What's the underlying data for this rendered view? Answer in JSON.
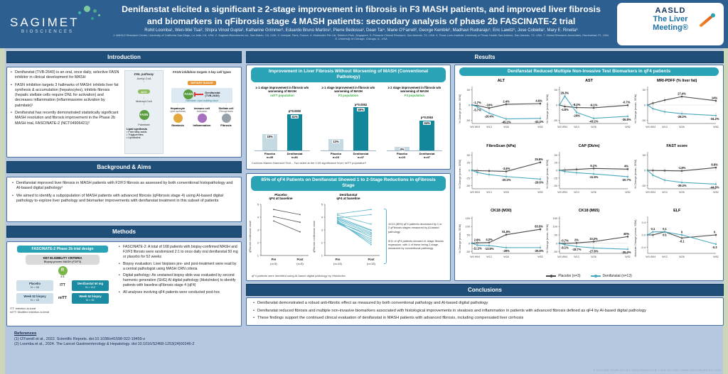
{
  "header": {
    "logo": {
      "name": "SAGIMET",
      "sub": "BIOSCIENCES"
    },
    "title_line1": "Denifanstat elicited a significant ≥ 2-stage improvement in fibrosis in F3 MASH patients, and improved liver fibrosis",
    "title_line2": "and biomarkers in qFibrosis stage 4 MASH patients: secondary analysis of phase 2b FASCINATE-2 trial",
    "authors": "Rohit Loomba¹, Wen-Wei Tsai², Shipra Vinod Gupta², Katharine Grimmer², Eduardo Bruno Martins², Pierre Bedossa³, Dean Tai⁴, Marie O'Farrell², George Kemble², Madhavi Rudraraju⁵, Eric Lawitz⁶, Jose Cobiella⁷, Mary E. Rinella⁸",
    "affiliations": "1. MASLD Research Center, University of California San Diego, La Jolla, CA, USA. 2. Sagimet Biosciences Inc, San Mateo, CA, USA. 3. Liverpat, Paris, France. 4. HistoIndex Pte Ltd, Teletech Park, Singapore. 5. Pinnacle Clinical Research, San Antonio, TX, USA. 6. Texas Liver Institute, University of Texas Health San Antonio, San Antonio, TX, USA. 7. Global Research Associates, Homestead, FL, USA. 8. University of Chicago, Chicago, IL, USA",
    "aasld": {
      "line1": "AASLD",
      "line2": "The Liver",
      "line3": "Meeting®"
    }
  },
  "intro": {
    "title": "Introduction",
    "bullets": [
      "Denifanstat (TVB-2640) is an oral, once daily, selective FASN inhibitor in clinical development for MASH",
      "FASN inhibition targets 3 hallmarks of MASH: inhibits liver fat synthesis & accumulation (hepatocytes), inhibits fibrosis (hepatic stellate cells require DNL for activation) and decreases inflammation (inflammasome activation by palmitate)¹",
      "Denifanstat has recently demonstrated statistically significant MASH resolution and fibrosis improvement in the Phase 2b MASH trial, FASCINATE-2 (NCT04906421)²"
    ],
    "dnl": {
      "title": "DNL pathway",
      "steps": [
        "Acetyl-CoA",
        "ACC",
        "Malonyl-CoA",
        "FASN",
        "Palmitate"
      ],
      "lipid_title": "Lipid synthesis",
      "lipid_items": [
        "• Free fatty acids",
        "• Triglycerides",
        "• Lipotoxins"
      ]
    },
    "fasn": {
      "title": "FASN inhibition targets 3 key cell types",
      "dietary": "DIETARY SUGAR",
      "fasn_label": "FASN",
      "drug_line1": "Denifanstat",
      "drug_line2": "(TVB-2640)",
      "palmitate": "Palmitate: Lipid building block",
      "cells": [
        {
          "name": "Hepatocyte",
          "func": "Lipid synthesis",
          "outcome": "Steatosis",
          "color": "#e3a93e"
        },
        {
          "name": "Immune cell",
          "func": "Activation",
          "outcome": "Inflammation",
          "color": "#a66fc0"
        },
        {
          "name": "Stellate cell",
          "func": "Fibrogenesis",
          "outcome": "Fibrosis",
          "color": "#98a0a8"
        }
      ]
    }
  },
  "background": {
    "title": "Background & Aims",
    "bullets": [
      "Denifanstat improved liver fibrosis in MASH patients with F2/F3 fibrosis as assessed by both conventional histopathology and AI-based digital pathology²",
      "We aimed to identify a subpopulation of MASH patients with advanced fibrosis (qFibrosis stage 4) using AI-based digital pathology to explore liver pathology and biomarker improvements with denifanstat treatment in this subset of patients"
    ]
  },
  "methods": {
    "title": "Methods",
    "trial": {
      "header": "FASCINATE-2 Phase 2b trial design",
      "eligibility_title": "KEY ELIGIBILITY CRITERIA",
      "eligibility_sub": "Biopsy-proven MASH (F2/F3)",
      "randomization_letter": "R",
      "ratio": "2:1",
      "itt_label": "ITT",
      "mitt_label": "mITT",
      "arms": [
        {
          "l1": "Placebo",
          "l2": "N = 56"
        },
        {
          "l1": "Denifanstat 50 mg",
          "l2": "N = 112"
        }
      ],
      "biopsies": [
        {
          "l1": "Week 52 biopsy",
          "l2": "N = 45"
        },
        {
          "l1": "Week 52 biopsy",
          "l2": "N = 81"
        }
      ],
      "footnote1": "ITT: Intention-to-treat",
      "footnote2": "mITT: Modified intention-to-treat"
    },
    "bullets": [
      "FASCINATE-2: A total of 168 patients with biopsy-confirmed MASH and F2/F3 fibrosis were randomized 2:1 to once daily oral denifanstat 50 mg or placebo for 52 weeks",
      "Biopsy evaluation: Liver biopsies pre- and post-treatment were read by a central pathologist using MASH CRN criteria",
      "Digital pathology: An unstained biopsy slide was evaluated by second harmonic generation (SHG) AI digital pathology (HistoIndex) to identify patients with baseline qFibrosis stage 4 (qF4)",
      "All analyses involving qF4 patients were conducted post-hoc"
    ]
  },
  "results": {
    "title": "Results",
    "conventional": {
      "header": "Improvement in Liver Fibrosis Without Worsening of MASH (Conventional Pathology)",
      "charts": [
        {
          "type": "bar",
          "title": "≥ 1 stage improvement in fibrosis w/o worsening of MASH",
          "population": "mITT population",
          "p_value": "p=0.0002",
          "placebo": {
            "label": "Placebo",
            "n": "n=45",
            "value": 18,
            "text": "18%"
          },
          "denifanstat": {
            "label": "Denifanstat",
            "n": "n=81",
            "value": 41,
            "text": "41%"
          }
        },
        {
          "type": "bar",
          "title": "≥ 1 stage improvement in fibrosis w/o worsening of MASH",
          "population": "F3 population",
          "p_value": "p=0.0052",
          "placebo": {
            "label": "Placebo",
            "n": "n=23",
            "value": 13,
            "text": "13%"
          },
          "denifanstat": {
            "label": "Denifanstat",
            "n": "n=47",
            "value": 49,
            "text": "49%"
          }
        },
        {
          "type": "bar",
          "title": "≥ 2 stage improvement in fibrosis w/o worsening of MASH",
          "population": "F3 population",
          "p_value": "p=0.0063",
          "placebo": {
            "label": "Placebo",
            "n": "n=23",
            "value": 4,
            "text": "4%"
          },
          "denifanstat": {
            "label": "Denifanstat",
            "n": "n=47",
            "value": 34,
            "text": "34%"
          }
        }
      ],
      "footnote": "Cochran-Mantel-Haenszel Test – Two sided at the 0.05 significance level; mITT population²"
    },
    "qf4": {
      "header": "85% of qF4 Patients on Denifanstat Showed 1 to 2-Stage Reductions in qFibrosis Stage",
      "ylabel": "qFibrosis continuous value",
      "placebo_plot": {
        "title_line1": "Placebo",
        "title_line2": "qF4 at baseline",
        "x_pre": "Pre",
        "x_pre_n": "(n=3)",
        "x_post": "Post",
        "x_post_n": "(n=3)",
        "lines": [
          [
            4.6,
            4.2
          ],
          [
            4.05,
            3.6
          ],
          [
            3.7,
            2.85
          ]
        ]
      },
      "denifanstat_plot": {
        "title_line1": "Denifanstat",
        "title_line2": "qF4 at baseline",
        "x_pre": "Pre",
        "x_pre_n": "(n=13)",
        "x_post": "Post",
        "x_post_n": "(n=13)",
        "lines": [
          [
            4.25,
            4.6
          ],
          [
            3.95,
            4.2
          ],
          [
            4.15,
            3.45
          ],
          [
            4.0,
            3.0
          ],
          [
            3.9,
            2.95
          ],
          [
            3.85,
            2.8
          ],
          [
            3.75,
            2.7
          ],
          [
            3.6,
            2.6
          ],
          [
            3.65,
            2.45
          ],
          [
            3.5,
            2.3
          ],
          [
            3.55,
            2.15
          ],
          [
            3.6,
            2.0
          ],
          [
            3.7,
            1.85
          ]
        ]
      },
      "annotations": [
        "11/13 (85%) qF4 patients decreased by 1 or 2 qFibrosis stages measured by AI-based pathology",
        "5/11 of qF4 patients showed ≥1 stage fibrosis regression, with 4 of these being 2-stage, measured by conventional pathology"
      ],
      "footnote": "qF4 patients were identified using AI-based digital pathology by HistoIndex"
    },
    "nit": {
      "header": "Denifanstat Reduced Multiple Non-Invasive Test Biomarkers in qF4 patients",
      "x_weeks": [
        0,
        4,
        13,
        26,
        52
      ],
      "x_labels": [
        "W0",
        "W04",
        "W13",
        "W26",
        "W52"
      ],
      "legend": [
        {
          "label": "Placebo (n=3)",
          "color": "#4a4a4a"
        },
        {
          "label": "Denifanstat (n=13)",
          "color": "#4aa9c0"
        }
      ],
      "charts": [
        {
          "id": "alt",
          "type": "line",
          "title": "ALT",
          "ylabel": "% Change (mean, SEM)",
          "ylim": [
            -60,
            60
          ],
          "yticks": [
            50,
            0,
            -50
          ],
          "placebo": {
            "values": [
              0,
              -1.7,
              -10,
              2.4,
              4.6
            ],
            "labels": [
              "",
              "-1.7%",
              "-10%",
              "2.4%",
              "4.6%"
            ]
          },
          "denifanstat": {
            "values": [
              0,
              -5.7,
              -26.4,
              -45.2,
              -43.4
            ],
            "labels": [
              "",
              "-5.7%",
              "-26.4%",
              "-45.2%",
              "-43.4%"
            ]
          }
        },
        {
          "id": "ast",
          "type": "line",
          "title": "AST",
          "ylabel": "% Change (mean, SEM)",
          "ylim": [
            -60,
            60
          ],
          "yticks": [
            50,
            0,
            -50
          ],
          "placebo": {
            "values": [
              0,
              -4.8,
              -8.2,
              -9.1,
              -0.7
            ],
            "labels": [
              "",
              "-4.8%",
              "-8.2%",
              "-9.1%",
              "-0.7%"
            ]
          },
          "denifanstat": {
            "values": [
              0,
              29.3,
              -24,
              -43.2,
              -36.8
            ],
            "labels": [
              "",
              "29.3%",
              "-24%",
              "-43.2%",
              "-36.8%"
            ]
          }
        },
        {
          "id": "mri-pdff",
          "type": "line",
          "title": "MRI-PDFF (% liver fat)",
          "ylabel": "% Change (mean, SEM)",
          "ylim": [
            -60,
            60
          ],
          "yticks": [
            50,
            0,
            -50
          ],
          "placebo": {
            "values": [
              0,
              6,
              16,
              27.4,
              14
            ],
            "labels": [
              "",
              "",
              "",
              "27.4%",
              "14%"
            ]
          },
          "denifanstat": {
            "values": [
              0,
              -12,
              -22,
              -28.2,
              -34.2
            ],
            "labels": [
              "",
              "",
              "",
              "-28.2%",
              "-34.2%"
            ]
          }
        },
        {
          "id": "fibroscan",
          "type": "line",
          "title": "FibroScan (kPa)",
          "ylabel": "% Change (mean, SEM)",
          "ylim": [
            -60,
            60
          ],
          "yticks": [
            50,
            25,
            0,
            -25,
            -50
          ],
          "placebo": {
            "values": [
              0,
              -1,
              -2,
              -3.6,
              25.9
            ],
            "labels": [
              "",
              "",
              "",
              "-3.6%",
              "25.9%"
            ]
          },
          "denifanstat": {
            "values": [
              0,
              -7,
              -14,
              -20.2,
              -28.6
            ],
            "labels": [
              "",
              "",
              "",
              "-20.2%",
              "-28.6%"
            ]
          }
        },
        {
          "id": "cap",
          "type": "line",
          "title": "CAP (Db/m)",
          "ylabel": "% Change (mean, SEM)",
          "ylim": [
            -60,
            60
          ],
          "yticks": [
            50,
            25,
            0,
            -25,
            -50
          ],
          "placebo": {
            "values": [
              0,
              1,
              3,
              6.1,
              4
            ],
            "labels": [
              "",
              "",
              "",
              "6.1%",
              "4%"
            ]
          },
          "denifanstat": {
            "values": [
              0,
              -4,
              -8,
              -11.6,
              -20.7
            ],
            "labels": [
              "",
              "",
              "",
              "-11.6%",
              "-20.7%"
            ]
          }
        },
        {
          "id": "fast-score",
          "type": "line",
          "title": "FAST score",
          "ylabel": "% Change (mean, SEM)",
          "ylim": [
            -60,
            60
          ],
          "yticks": [
            50,
            0,
            -50
          ],
          "placebo": {
            "values": [
              0,
              -0.5,
              -1,
              -1.8,
              8.8
            ],
            "labels": [
              "",
              "",
              "",
              "-1.8%",
              "8.8%"
            ]
          },
          "denifanstat": {
            "values": [
              0,
              -16,
              -32,
              -39.4,
              -44.8
            ],
            "labels": [
              "",
              "",
              "",
              "-39.4%",
              "-44.8%"
            ]
          }
        },
        {
          "id": "ck18-m30",
          "type": "line",
          "title": "CK18 (M30)",
          "ylabel": "% Change (mean, SEM)",
          "ylim": [
            -60,
            160
          ],
          "yticks": [
            150,
            100,
            50,
            0,
            -50
          ],
          "placebo": {
            "values": [
              0,
              2.6,
              4.2,
              51.5,
              83.5
            ],
            "labels": [
              "",
              "2.6%",
              "4.2%",
              "51.5%",
              "83.5%"
            ]
          },
          "denifanstat": {
            "values": [
              0,
              -11.2,
              -13.8,
              -26,
              -25.6
            ],
            "labels": [
              "",
              "-11.2%",
              "-13.8%",
              "-26%",
              "-25.6%"
            ]
          }
        },
        {
          "id": "ck18-m65",
          "type": "line",
          "title": "CK18 (M65)",
          "ylabel": "% Change (mean, SEM)",
          "ylim": [
            -60,
            160
          ],
          "yticks": [
            150,
            100,
            50,
            0,
            -50
          ],
          "placebo": {
            "values": [
              0,
              -0.7,
              2,
              10.2,
              40
            ],
            "labels": [
              "",
              "-0.7%",
              "2%",
              "10.2%",
              "40%"
            ]
          },
          "denifanstat": {
            "values": [
              0,
              -8.1,
              -18.7,
              -27.8,
              -35.4
            ],
            "labels": [
              "",
              "-8.1%",
              "-18.7%",
              "-27.8%",
              "-35.4%"
            ]
          }
        },
        {
          "id": "elf",
          "type": "line",
          "title": "ELF",
          "ylabel": "Absolute Change (mean, SEM)",
          "ylim": [
            -0.6,
            0.6
          ],
          "yticks": [
            0.4,
            0,
            -0.4
          ],
          "placebo": {
            "values": [
              0,
              0,
              0.1,
              -0.1,
              0
            ],
            "labels": [
              "",
              "",
              "0.1",
              "-0.1",
              "0"
            ]
          },
          "denifanstat": {
            "values": [
              0,
              0.1,
              0.1,
              0,
              -0.3
            ],
            "labels": [
              "",
              "0.1",
              "0.1",
              "0",
              "-0.3"
            ]
          }
        }
      ]
    }
  },
  "conclusions": {
    "title": "Conclusions",
    "bullets": [
      "Denifanstat demonstrated a robust anti-fibrotic effect as measured by both conventional pathology and AI-based digital pathology",
      "Denifanstat reduced fibrosis and multiple non-invasive biomarkers associated with histological improvements in steatosis and inflammation in patients with advanced fibrosis defined as qF4 by AI-based digital pathology",
      "These findings support the continued clinical evaluation of denifanstat in MASH patients with advanced fibrosis, including compensated liver cirrhosis"
    ]
  },
  "footer": {
    "references_heading": "References",
    "references": [
      "(1) O'Farrell et al., 2022. Scientific Reports. doi:10.1038/s41598-022-19459-z",
      "(2) Loomba et al., 2024. The Lancet Gastroenterology & Hepatology. doi:10.1016/S2468-1253(24)00246-2"
    ],
    "template_credit": "© POSTER TEMPLATE BY GENIGRAPHICS® 1.800.790.4001 WWW.GENIGRAPHICS.COM"
  },
  "colors": {
    "header_bg": "#2e5f91",
    "section_bar": "#1f4e79",
    "teal_header": "#2ba3b6",
    "denifanstat_bar": "#12869b",
    "placebo_bar": "#c4d9e1",
    "population_green": "#3fae49",
    "placebo_line": "#4a4a4a",
    "denifanstat_line": "#4aa9c0",
    "page_edge": "#ccd6ba",
    "page_bg": "#b6c8e0"
  }
}
